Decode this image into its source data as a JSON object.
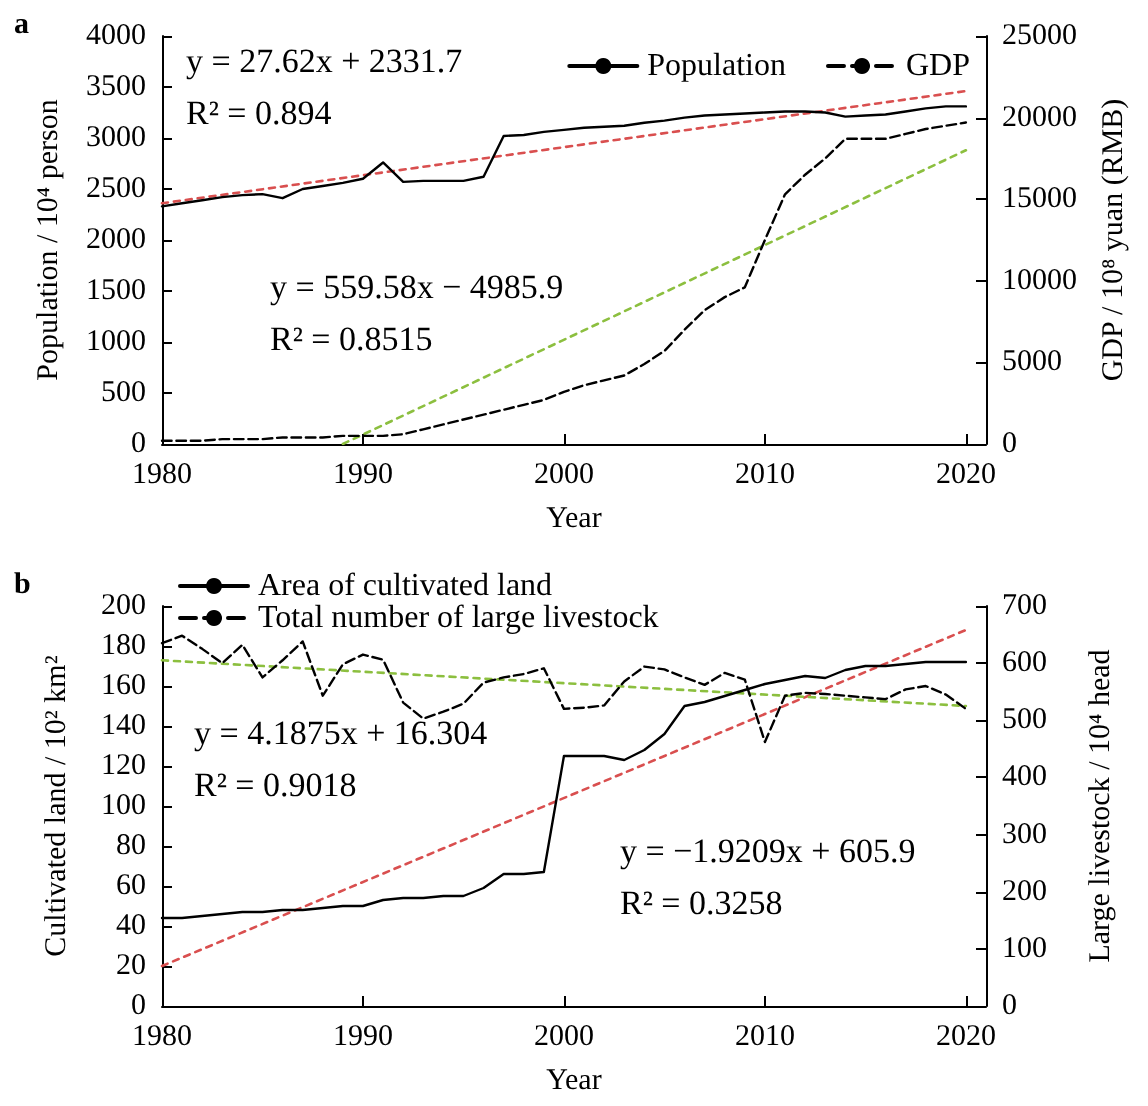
{
  "chart_data": [
    {
      "type": "line",
      "title": "a",
      "xlabel": "Year",
      "ylabel": "Population / 10⁴ person",
      "y2label": "GDP / 10⁸ yuan (RMB)",
      "x": [
        1980,
        1981,
        1982,
        1983,
        1984,
        1985,
        1986,
        1987,
        1988,
        1989,
        1990,
        1991,
        1992,
        1993,
        1994,
        1995,
        1996,
        1997,
        1998,
        1999,
        2000,
        2001,
        2002,
        2003,
        2004,
        2005,
        2006,
        2007,
        2008,
        2009,
        2010,
        2011,
        2012,
        2013,
        2014,
        2015,
        2016,
        2017,
        2018,
        2019,
        2020
      ],
      "series": [
        {
          "name": "Population",
          "color": "#000000",
          "line_style": "solid",
          "values": [
            2330,
            2360,
            2390,
            2420,
            2440,
            2450,
            2410,
            2500,
            2530,
            2560,
            2600,
            2760,
            2570,
            2580,
            2580,
            2580,
            2620,
            3020,
            3030,
            3060,
            3080,
            3100,
            3110,
            3120,
            3150,
            3170,
            3200,
            3220,
            3230,
            3240,
            3250,
            3260,
            3260,
            3250,
            3210,
            3220,
            3230,
            3260,
            3290,
            3310,
            3310
          ]
        },
        {
          "name": "GDP",
          "color": "#000000",
          "line_style": "dashed",
          "axis": "y2",
          "values": [
            200,
            200,
            200,
            300,
            300,
            300,
            400,
            400,
            400,
            500,
            500,
            500,
            600,
            900,
            1200,
            1500,
            1800,
            2100,
            2400,
            2700,
            3200,
            3600,
            3900,
            4200,
            4900,
            5700,
            7000,
            8200,
            9000,
            9600,
            12500,
            15300,
            16500,
            17500,
            18700,
            18700,
            18700,
            19000,
            19300,
            19500,
            19700
          ]
        },
        {
          "color": "#d94f4f",
          "line_style": "dotted",
          "x": [
            1980,
            2020
          ],
          "values": [
            2360,
            3460
          ]
        },
        {
          "color": "#8cbf3f",
          "line_style": "dotted",
          "axis": "y2",
          "x": [
            1989,
            2020
          ],
          "values": [
            0,
            18000
          ]
        }
      ],
      "xlim": [
        1980,
        2021
      ],
      "xticks": [
        1980,
        1990,
        2000,
        2010,
        2020
      ],
      "ylim": [
        0,
        4000
      ],
      "yticks": [
        0,
        500,
        1000,
        1500,
        2000,
        2500,
        3000,
        3500,
        4000
      ],
      "y2lim": [
        0,
        25000
      ],
      "y2ticks": [
        0,
        5000,
        10000,
        15000,
        20000,
        25000
      ],
      "annotations": [
        "y = 27.62x + 2331.7",
        "R² = 0.894",
        "y = 559.58x − 4985.9",
        "R² = 0.8515"
      ],
      "legend": "top right",
      "grid": false,
      "marker": "none"
    },
    {
      "type": "line",
      "title": "b",
      "xlabel": "Year",
      "ylabel": "Cultivated land / 10² km²",
      "y2label": "Large livestock / 10⁴ head",
      "x": [
        1980,
        1981,
        1982,
        1983,
        1984,
        1985,
        1986,
        1987,
        1988,
        1989,
        1990,
        1991,
        1992,
        1993,
        1994,
        1995,
        1996,
        1997,
        1998,
        1999,
        2000,
        2001,
        2002,
        2003,
        2004,
        2005,
        2006,
        2007,
        2008,
        2009,
        2010,
        2011,
        2012,
        2013,
        2014,
        2015,
        2016,
        2017,
        2018,
        2019,
        2020
      ],
      "series": [
        {
          "name": "Area of cultivated land",
          "color": "#000000",
          "line_style": "solid",
          "values": [
            44,
            44,
            45,
            46,
            47,
            47,
            48,
            48,
            49,
            50,
            50,
            53,
            54,
            54,
            55,
            55,
            59,
            66,
            66,
            67,
            125,
            125,
            125,
            123,
            128,
            136,
            150,
            152,
            155,
            158,
            161,
            163,
            165,
            164,
            168,
            170,
            170,
            171,
            172,
            172,
            172
          ]
        },
        {
          "name": "Total number of large livestock",
          "color": "#000000",
          "line_style": "dashed",
          "axis": "y2",
          "values": [
            635,
            648,
            625,
            600,
            632,
            575,
            605,
            638,
            543,
            598,
            615,
            606,
            531,
            503,
            515,
            529,
            566,
            575,
            581,
            591,
            520,
            522,
            526,
            568,
            594,
            589,
            575,
            562,
            583,
            571,
            462,
            543,
            548,
            546,
            543,
            540,
            537,
            554,
            560,
            545,
            520
          ]
        },
        {
          "color": "#d94f4f",
          "line_style": "dotted",
          "x": [
            1980,
            2020
          ],
          "values": [
            20,
            188
          ]
        },
        {
          "color": "#8cbf3f",
          "line_style": "dotted",
          "axis": "y2",
          "x": [
            1980,
            2020
          ],
          "values": [
            605,
            525
          ]
        }
      ],
      "xlim": [
        1980,
        2021
      ],
      "xticks": [
        1980,
        1990,
        2000,
        2010,
        2020
      ],
      "ylim": [
        0,
        200
      ],
      "yticks": [
        0,
        20,
        40,
        60,
        80,
        100,
        120,
        140,
        160,
        180,
        200
      ],
      "y2lim": [
        0,
        700
      ],
      "y2ticks": [
        0,
        100,
        200,
        300,
        400,
        500,
        600,
        700
      ],
      "annotations": [
        "y = 4.1875x + 16.304",
        "R² = 0.9018",
        "y = −1.9209x + 605.9",
        "R² = 0.3258"
      ],
      "legend": "top left",
      "grid": false,
      "marker": "none"
    }
  ]
}
